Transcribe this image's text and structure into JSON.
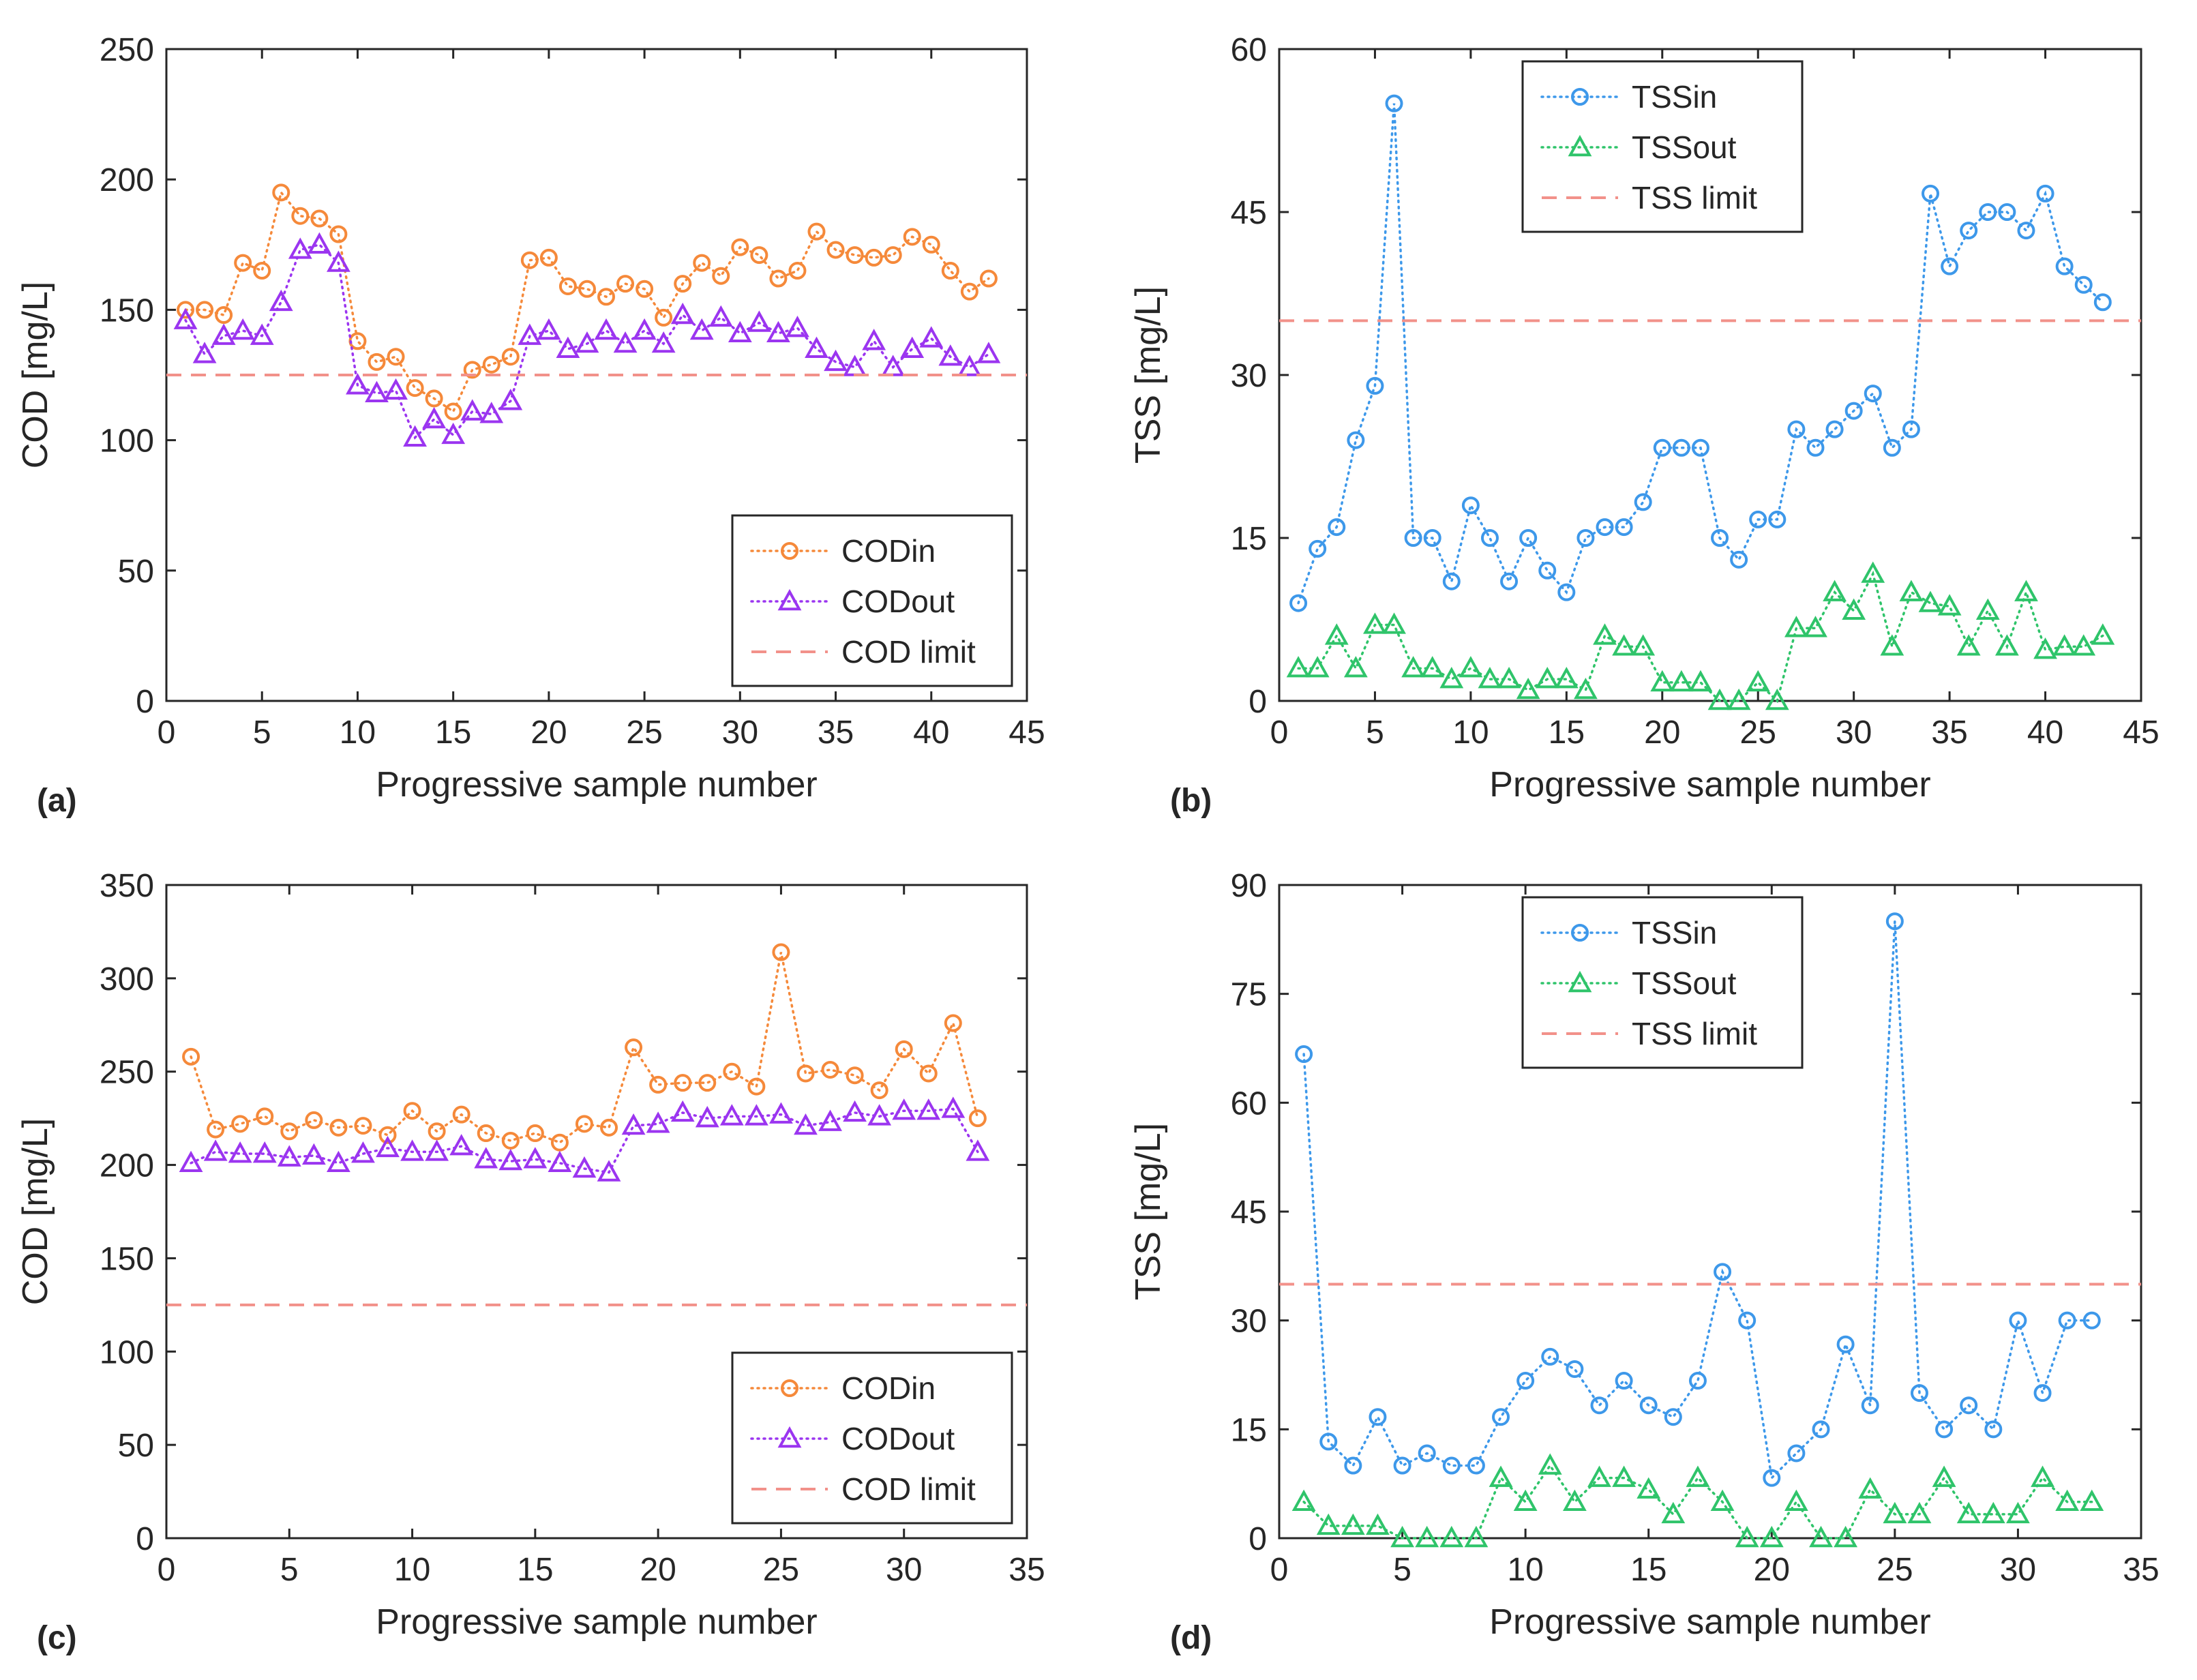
{
  "colors": {
    "cod_in": "#F5893A",
    "cod_out": "#9B35F0",
    "tss_in": "#3D98EA",
    "tss_out": "#2FC46A",
    "limit": "#F2918A",
    "axis": "#262626"
  },
  "chart_data": [
    {
      "panel": "(a)",
      "type": "line",
      "xlabel": "Progressive sample number",
      "ylabel": "COD [mg/L]",
      "xlim": [
        0,
        45
      ],
      "ylim": [
        0,
        250
      ],
      "xticks": [
        0,
        5,
        10,
        15,
        20,
        25,
        30,
        35,
        40,
        45
      ],
      "yticks": [
        0,
        50,
        100,
        150,
        200,
        250
      ],
      "legend_position": "bottom-right",
      "series": [
        {
          "name": "CODin",
          "color": "#F5893A",
          "marker": "circle",
          "x": [
            1,
            2,
            3,
            4,
            5,
            6,
            7,
            8,
            9,
            10,
            11,
            12,
            13,
            14,
            15,
            16,
            17,
            18,
            19,
            20,
            21,
            22,
            23,
            24,
            25,
            26,
            27,
            28,
            29,
            30,
            31,
            32,
            33,
            34,
            35,
            36,
            37,
            38,
            39,
            40,
            41,
            42,
            43
          ],
          "values": [
            150,
            150,
            148,
            168,
            165,
            195,
            186,
            185,
            179,
            138,
            130,
            132,
            120,
            116,
            111,
            127,
            129,
            132,
            169,
            170,
            159,
            158,
            155,
            160,
            158,
            147,
            160,
            168,
            163,
            174,
            171,
            162,
            165,
            180,
            173,
            171,
            170,
            171,
            178,
            175,
            165,
            157,
            162
          ]
        },
        {
          "name": "CODout",
          "color": "#9B35F0",
          "marker": "triangle",
          "x": [
            1,
            2,
            3,
            4,
            5,
            6,
            7,
            8,
            9,
            10,
            11,
            12,
            13,
            14,
            15,
            16,
            17,
            18,
            19,
            20,
            21,
            22,
            23,
            24,
            25,
            26,
            27,
            28,
            29,
            30,
            31,
            32,
            33,
            34,
            35,
            36,
            37,
            38,
            39,
            40,
            41,
            42,
            43
          ],
          "values": [
            146,
            133,
            140,
            142,
            140,
            153,
            173,
            175,
            168,
            121,
            118,
            119,
            101,
            108,
            102,
            111,
            110,
            115,
            140,
            142,
            135,
            137,
            142,
            137,
            142,
            137,
            148,
            142,
            147,
            141,
            145,
            141,
            143,
            135,
            130,
            128,
            138,
            128,
            135,
            139,
            132,
            128,
            133
          ]
        },
        {
          "name": "COD limit",
          "color": "#F2918A",
          "style": "dashed",
          "y": 125
        }
      ]
    },
    {
      "panel": "(b)",
      "type": "line",
      "xlabel": "Progressive sample number",
      "ylabel": "TSS [mg/L]",
      "xlim": [
        0,
        45
      ],
      "ylim": [
        0,
        60
      ],
      "xticks": [
        0,
        5,
        10,
        15,
        20,
        25,
        30,
        35,
        40,
        45
      ],
      "yticks": [
        0,
        15,
        30,
        45,
        60
      ],
      "legend_position": "top-center",
      "series": [
        {
          "name": "TSSin",
          "color": "#3D98EA",
          "marker": "circle",
          "x": [
            1,
            2,
            3,
            4,
            5,
            6,
            7,
            8,
            9,
            10,
            11,
            12,
            13,
            14,
            15,
            16,
            17,
            18,
            19,
            20,
            21,
            22,
            23,
            24,
            25,
            26,
            27,
            28,
            29,
            30,
            31,
            32,
            33,
            34,
            35,
            36,
            37,
            38,
            39,
            40,
            41,
            42,
            43
          ],
          "values": [
            9,
            14,
            16,
            24,
            29,
            55,
            15,
            15,
            11,
            18,
            15,
            11,
            15,
            12,
            10,
            15,
            16,
            16,
            18.3,
            23.3,
            23.3,
            23.3,
            15,
            13,
            16.7,
            16.7,
            25,
            23.3,
            25,
            26.7,
            28.3,
            23.3,
            25,
            46.7,
            40,
            43.3,
            45,
            45,
            43.3,
            46.7,
            40,
            38.3,
            36.7
          ]
        },
        {
          "name": "TSSout",
          "color": "#2FC46A",
          "marker": "triangle",
          "x": [
            1,
            2,
            3,
            4,
            5,
            6,
            7,
            8,
            9,
            10,
            11,
            12,
            13,
            14,
            15,
            16,
            17,
            18,
            19,
            20,
            21,
            22,
            23,
            24,
            25,
            26,
            27,
            28,
            29,
            30,
            31,
            32,
            33,
            34,
            35,
            36,
            37,
            38,
            39,
            40,
            41,
            42,
            43
          ],
          "values": [
            3,
            3,
            6,
            3,
            7,
            7,
            3,
            3,
            2,
            3,
            2,
            2,
            1,
            2,
            2,
            1,
            6,
            5,
            5,
            1.7,
            1.7,
            1.7,
            0,
            0,
            1.7,
            0,
            6.7,
            6.7,
            10,
            8.3,
            11.7,
            5,
            10,
            9,
            8.7,
            5,
            8.3,
            5,
            10,
            4.7,
            5,
            5,
            6
          ]
        },
        {
          "name": "TSS limit",
          "color": "#F2918A",
          "style": "dashed",
          "y": 35
        }
      ]
    },
    {
      "panel": "(c)",
      "type": "line",
      "xlabel": "Progressive sample number",
      "ylabel": "COD [mg/L]",
      "xlim": [
        0,
        35
      ],
      "ylim": [
        0,
        350
      ],
      "xticks": [
        0,
        5,
        10,
        15,
        20,
        25,
        30,
        35
      ],
      "yticks": [
        0,
        50,
        100,
        150,
        200,
        250,
        300,
        350
      ],
      "legend_position": "bottom-right",
      "series": [
        {
          "name": "CODin",
          "color": "#F5893A",
          "marker": "circle",
          "x": [
            1,
            2,
            3,
            4,
            5,
            6,
            7,
            8,
            9,
            10,
            11,
            12,
            13,
            14,
            15,
            16,
            17,
            18,
            19,
            20,
            21,
            22,
            23,
            24,
            25,
            26,
            27,
            28,
            29,
            30,
            31,
            32,
            33
          ],
          "values": [
            258,
            219,
            222,
            226,
            218,
            224,
            220,
            221,
            216,
            229,
            218,
            227,
            217,
            213,
            217,
            212,
            222,
            220,
            263,
            243,
            244,
            244,
            250,
            242,
            314,
            249,
            251,
            248,
            240,
            262,
            249,
            276,
            225
          ]
        },
        {
          "name": "CODout",
          "color": "#9B35F0",
          "marker": "triangle",
          "x": [
            1,
            2,
            3,
            4,
            5,
            6,
            7,
            8,
            9,
            10,
            11,
            12,
            13,
            14,
            15,
            16,
            17,
            18,
            19,
            20,
            21,
            22,
            23,
            24,
            25,
            26,
            27,
            28,
            29,
            30,
            31,
            32,
            33
          ],
          "values": [
            201,
            207,
            206,
            206,
            204,
            205,
            201,
            206,
            209,
            207,
            207,
            210,
            203,
            202,
            203,
            201,
            198,
            196,
            221,
            222,
            228,
            225,
            226,
            226,
            227,
            221,
            223,
            228,
            226,
            229,
            229,
            230,
            207
          ]
        },
        {
          "name": "COD limit",
          "color": "#F2918A",
          "style": "dashed",
          "y": 125
        }
      ]
    },
    {
      "panel": "(d)",
      "type": "line",
      "xlabel": "Progressive sample number",
      "ylabel": "TSS [mg/L]",
      "xlim": [
        0,
        35
      ],
      "ylim": [
        0,
        90
      ],
      "xticks": [
        0,
        5,
        10,
        15,
        20,
        25,
        30,
        35
      ],
      "yticks": [
        0,
        15,
        30,
        45,
        60,
        75,
        90
      ],
      "legend_position": "top-center",
      "series": [
        {
          "name": "TSSin",
          "color": "#3D98EA",
          "marker": "circle",
          "x": [
            1,
            2,
            3,
            4,
            5,
            6,
            7,
            8,
            9,
            10,
            11,
            12,
            13,
            14,
            15,
            16,
            17,
            18,
            19,
            20,
            21,
            22,
            23,
            24,
            25,
            26,
            27,
            28,
            29,
            30,
            31,
            32,
            33
          ],
          "values": [
            66.7,
            13.3,
            10,
            16.7,
            10,
            11.7,
            10,
            10,
            16.7,
            21.7,
            25,
            23.3,
            18.3,
            21.7,
            18.3,
            16.7,
            21.7,
            36.7,
            30,
            8.3,
            11.7,
            15,
            26.7,
            18.3,
            85,
            20,
            15,
            18.3,
            15,
            30,
            20,
            30,
            30
          ]
        },
        {
          "name": "TSSout",
          "color": "#2FC46A",
          "marker": "triangle",
          "x": [
            1,
            2,
            3,
            4,
            5,
            6,
            7,
            8,
            9,
            10,
            11,
            12,
            13,
            14,
            15,
            16,
            17,
            18,
            19,
            20,
            21,
            22,
            23,
            24,
            25,
            26,
            27,
            28,
            29,
            30,
            31,
            32,
            33
          ],
          "values": [
            5,
            1.7,
            1.7,
            1.7,
            0,
            0,
            0,
            0,
            8.3,
            5,
            10,
            5,
            8.3,
            8.3,
            6.7,
            3.3,
            8.3,
            5,
            0,
            0,
            5,
            0,
            0,
            6.7,
            3.3,
            3.3,
            8.3,
            3.3,
            3.3,
            3.3,
            8.3,
            5,
            5
          ]
        },
        {
          "name": "TSS limit",
          "color": "#F2918A",
          "style": "dashed",
          "y": 35
        }
      ]
    }
  ]
}
